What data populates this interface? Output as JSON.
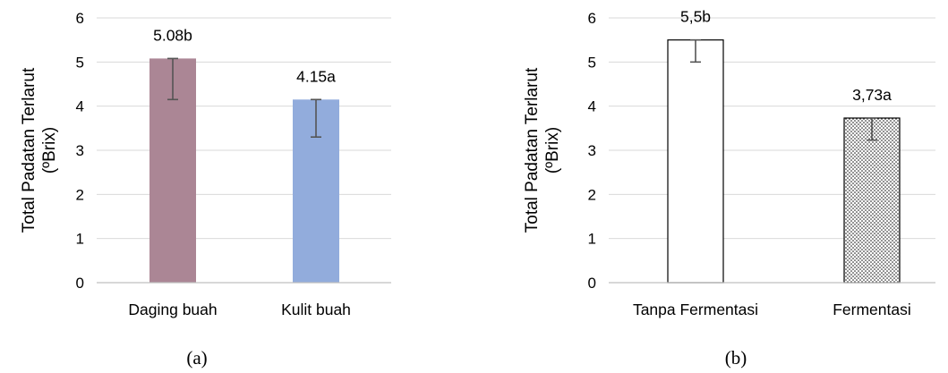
{
  "chart_data": [
    {
      "type": "bar",
      "panel_label": "(a)",
      "ylabel": [
        "Total Padatan Terlarut",
        "(ºBrix)"
      ],
      "ylim": [
        0,
        6
      ],
      "yticks": [
        0,
        1,
        2,
        3,
        4,
        5,
        6
      ],
      "grid": true,
      "categories": [
        "Daging buah",
        "Kulit buah"
      ],
      "values": [
        5.08,
        4.15
      ],
      "error": [
        0.93,
        0.85
      ],
      "data_labels": [
        "5.08b",
        "4.15a"
      ],
      "colors": [
        "#ab8695",
        "#92acdc"
      ],
      "fills": [
        "solid",
        "solid"
      ]
    },
    {
      "type": "bar",
      "panel_label": "(b)",
      "ylabel": [
        "Total Padatan Terlarut",
        "(ºBrix)"
      ],
      "ylim": [
        0,
        6
      ],
      "yticks": [
        0,
        1,
        2,
        3,
        4,
        5,
        6
      ],
      "grid": true,
      "categories": [
        "Tanpa Fermentasi",
        "Fermentasi"
      ],
      "values": [
        5.5,
        3.73
      ],
      "error": [
        0.5,
        0.5
      ],
      "data_labels": [
        "5,5b",
        "3,73a"
      ],
      "colors": [
        "#ffffff",
        "#ffffff"
      ],
      "fills": [
        "outline",
        "dotted"
      ]
    }
  ]
}
